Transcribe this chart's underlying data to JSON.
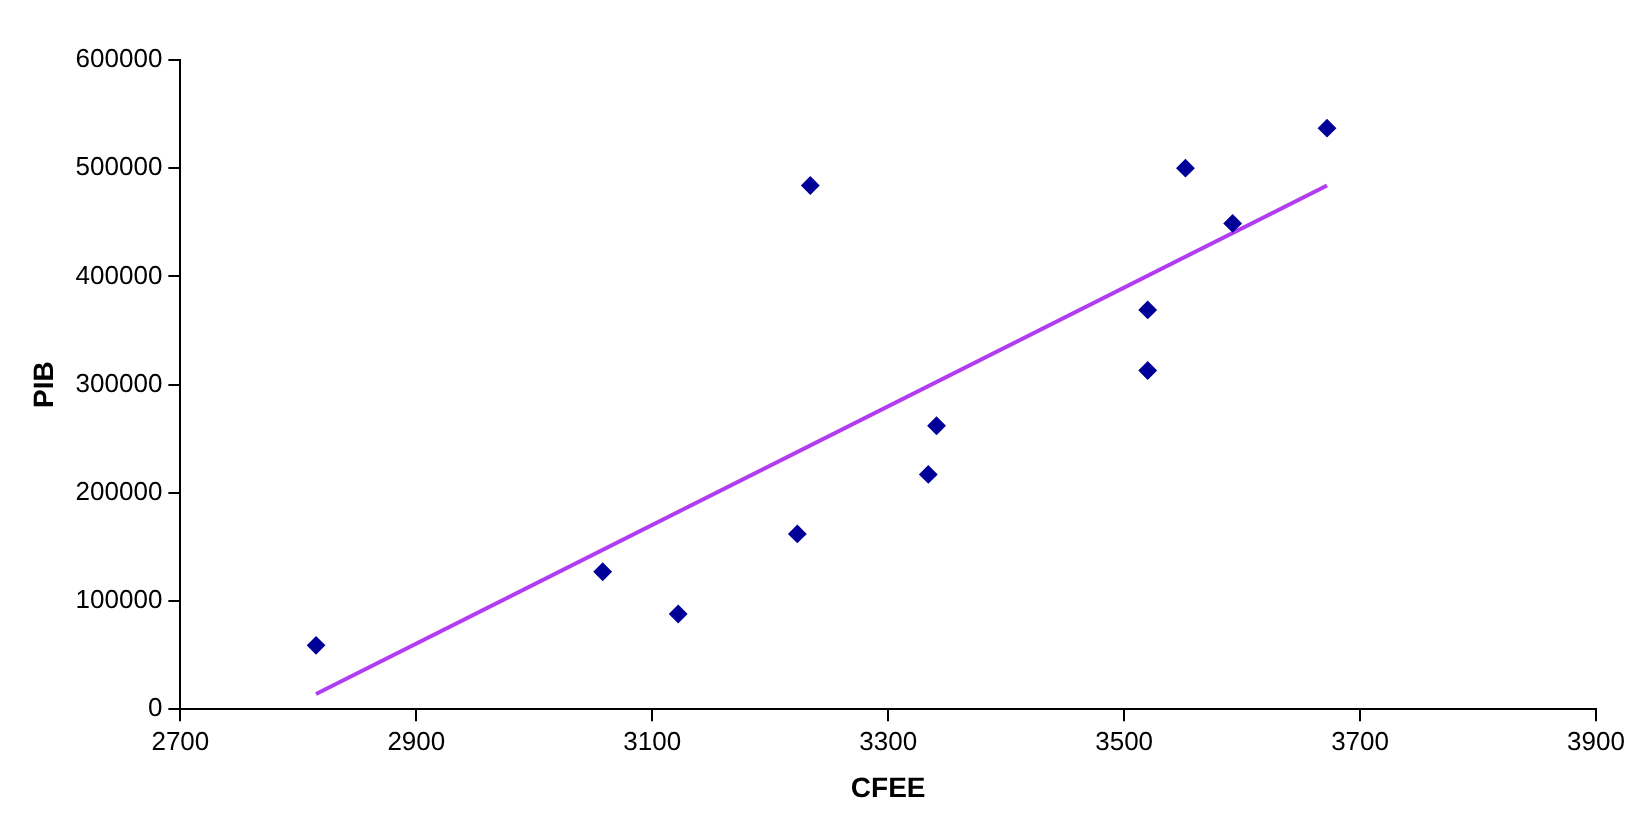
{
  "chart_data": {
    "type": "scatter",
    "xlabel": "CFEE",
    "ylabel": "PIB",
    "xlim": [
      2700,
      3900
    ],
    "xticks": [
      2700,
      2900,
      3100,
      3300,
      3500,
      3700,
      3900
    ],
    "ylim": [
      0,
      600000
    ],
    "yticks": [
      0,
      100000,
      200000,
      300000,
      400000,
      500000,
      600000
    ],
    "grid": false,
    "legend": false,
    "marker": "diamond",
    "series": [
      {
        "color": "#000099",
        "x": [
          2815,
          3058,
          3122,
          3223,
          3234,
          3334,
          3341,
          3520,
          3520,
          3552,
          3592,
          3672
        ],
        "values": [
          59000,
          127000,
          88000,
          162000,
          484000,
          217000,
          262000,
          313000,
          369000,
          500000,
          449000,
          537000
        ]
      },
      {
        "type": "line",
        "marker": "none",
        "color": "#b23cf0",
        "x": [
          2815,
          3672
        ],
        "values": [
          14000,
          484000
        ]
      }
    ]
  }
}
